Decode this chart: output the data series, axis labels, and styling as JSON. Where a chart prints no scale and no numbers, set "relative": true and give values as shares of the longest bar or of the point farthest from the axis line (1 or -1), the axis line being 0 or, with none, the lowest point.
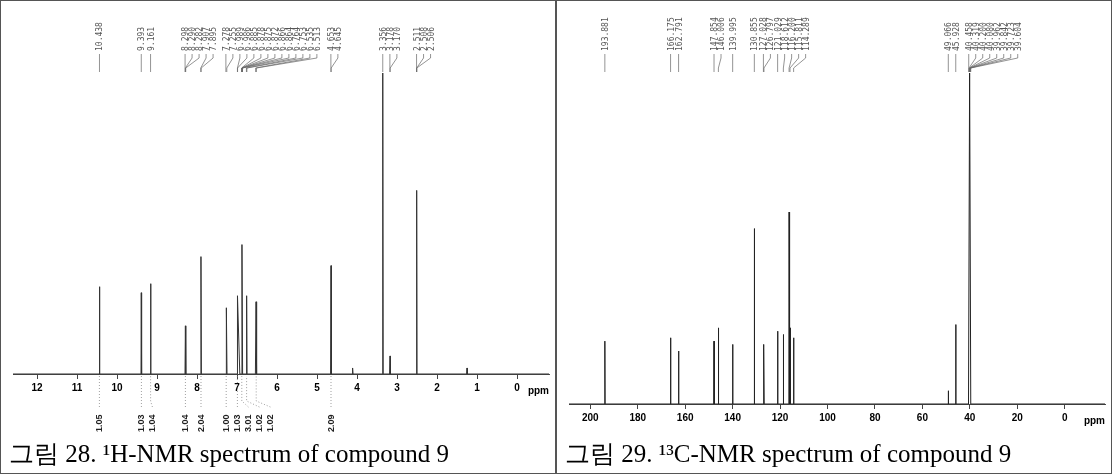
{
  "chart_data": [
    {
      "type": "line",
      "title": "그림 28. ¹H-NMR spectrum of compound 9",
      "xlabel": "ppm",
      "relative": true,
      "xlim": [
        12.6,
        -0.8
      ],
      "xticks": [
        12,
        11,
        10,
        9,
        8,
        7,
        6,
        5,
        4,
        3,
        2,
        1,
        0
      ],
      "x": [
        12.6,
        10.45,
        10.438,
        10.43,
        9.4,
        9.393,
        9.385,
        9.17,
        9.161,
        9.15,
        8.3,
        8.29,
        8.28,
        7.91,
        7.901,
        7.89,
        7.27,
        7.266,
        7.25,
        6.995,
        6.988,
        6.93,
        6.89,
        6.876,
        6.86,
        6.77,
        6.759,
        6.75,
        6.54,
        6.524,
        6.51,
        4.66,
        4.649,
        4.64,
        4.12,
        4.11,
        4.1,
        3.365,
        3.356,
        3.345,
        3.185,
        3.174,
        3.165,
        2.515,
        2.508,
        2.5,
        1.26,
        1.25,
        1.24,
        -0.8
      ],
      "series": [
        {
          "color": "#333333",
          "values": [
            0,
            0,
            0.29,
            0,
            0,
            0.27,
            0,
            0,
            0.3,
            0,
            0,
            0.16,
            0,
            0,
            0.39,
            0,
            0,
            0.22,
            0,
            0,
            0.26,
            0,
            0,
            0.43,
            0,
            0,
            0.26,
            0,
            0,
            0.24,
            0,
            0,
            0.36,
            0,
            0,
            0.02,
            0,
            0,
            1,
            0,
            0,
            0.06,
            0,
            0,
            0.61,
            0,
            0,
            0.02,
            0,
            0
          ]
        }
      ],
      "annotations": [
        {
          "text": "10.438",
          "x": 10.438
        },
        {
          "text": "9.393",
          "x": 9.393
        },
        {
          "text": "9.161",
          "x": 9.161
        },
        {
          "text": "8.298",
          "x": 8.298
        },
        {
          "text": "8.290",
          "x": 8.29
        },
        {
          "text": "8.282",
          "x": 8.282
        },
        {
          "text": "7.907",
          "x": 7.907
        },
        {
          "text": "7.895",
          "x": 7.895
        },
        {
          "text": "7.278",
          "x": 7.278
        },
        {
          "text": "7.255",
          "x": 7.255
        },
        {
          "text": "6.989",
          "x": 6.989
        },
        {
          "text": "6.986",
          "x": 6.986
        },
        {
          "text": "6.885",
          "x": 6.885
        },
        {
          "text": "6.878",
          "x": 6.878
        },
        {
          "text": "6.875",
          "x": 6.875
        },
        {
          "text": "6.872",
          "x": 6.872
        },
        {
          "text": "6.866",
          "x": 6.866
        },
        {
          "text": "6.864",
          "x": 6.864
        },
        {
          "text": "6.764",
          "x": 6.764
        },
        {
          "text": "6.753",
          "x": 6.753
        },
        {
          "text": "6.535",
          "x": 6.535
        },
        {
          "text": "6.513",
          "x": 6.513
        },
        {
          "text": "4.653",
          "x": 4.653
        },
        {
          "text": "4.645",
          "x": 4.645
        },
        {
          "text": "3.356",
          "x": 3.356
        },
        {
          "text": "3.178",
          "x": 3.178
        },
        {
          "text": "3.170",
          "x": 3.17
        },
        {
          "text": "2.511",
          "x": 2.511
        },
        {
          "text": "2.508",
          "x": 2.508
        },
        {
          "text": "2.506",
          "x": 2.506
        },
        {
          "text": "1.05",
          "x": 10.44,
          "y": 0
        },
        {
          "text": "1.03",
          "x": 9.39,
          "y": 0
        },
        {
          "text": "1.04",
          "x": 9.16,
          "y": 0
        },
        {
          "text": "1.04",
          "x": 8.29,
          "y": 0
        },
        {
          "text": "2.04",
          "x": 7.9,
          "y": 0
        },
        {
          "text": "1.00",
          "x": 7.27,
          "y": 0
        },
        {
          "text": "1.03",
          "x": 6.99,
          "y": 0
        },
        {
          "text": "3.01",
          "x": 6.88,
          "y": 0
        },
        {
          "text": "1.02",
          "x": 6.76,
          "y": 0
        },
        {
          "text": "1.02",
          "x": 6.52,
          "y": 0
        },
        {
          "text": "2.09",
          "x": 4.65,
          "y": 0
        }
      ]
    },
    {
      "type": "line",
      "title": "그림 29. ¹³C-NMR spectrum of compound 9",
      "xlabel": "ppm",
      "relative": true,
      "xlim": [
        209,
        -17
      ],
      "xticks": [
        200,
        180,
        160,
        140,
        120,
        100,
        80,
        60,
        40,
        20,
        0
      ],
      "x": [
        209,
        193.98,
        193.881,
        193.78,
        166.28,
        166.175,
        166.07,
        162.89,
        162.791,
        162.69,
        147.95,
        147.854,
        147.75,
        146.11,
        146.006,
        145.9,
        140.1,
        139.995,
        139.9,
        130.95,
        130.855,
        130.75,
        127.1,
        127.028,
        126.91,
        126.797,
        126.7,
        121.13,
        121.029,
        120.93,
        118.71,
        118.612,
        118.51,
        116.3,
        116.2,
        116.0,
        115.811,
        115.7,
        114.39,
        114.289,
        114.19,
        49.17,
        49.066,
        48.97,
        46.03,
        45.928,
        45.83,
        40.55,
        40.08,
        39.6,
        -17
      ],
      "series": [
        {
          "color": "#222222",
          "values": [
            0,
            0,
            0.19,
            0,
            0,
            0.2,
            0,
            0,
            0.16,
            0,
            0,
            0.19,
            0,
            0,
            0.23,
            0,
            0,
            0.18,
            0,
            0,
            0.53,
            0,
            0,
            0.18,
            0,
            0.17,
            0,
            0,
            0.22,
            0,
            0,
            0.21,
            0,
            0,
            0.58,
            0,
            0.23,
            0,
            0,
            0.2,
            0,
            0,
            0.04,
            0,
            0,
            0.24,
            0,
            0,
            1,
            0,
            0
          ]
        }
      ],
      "annotations": [
        {
          "text": "193.881",
          "x": 193.881
        },
        {
          "text": "166.175",
          "x": 166.175
        },
        {
          "text": "162.791",
          "x": 162.791
        },
        {
          "text": "147.854",
          "x": 147.854
        },
        {
          "text": "146.006",
          "x": 146.006
        },
        {
          "text": "139.995",
          "x": 139.995
        },
        {
          "text": "130.855",
          "x": 130.855
        },
        {
          "text": "127.028",
          "x": 127.028
        },
        {
          "text": "126.797",
          "x": 126.797
        },
        {
          "text": "121.029",
          "x": 121.029
        },
        {
          "text": "118.612",
          "x": 118.612
        },
        {
          "text": "116.200",
          "x": 116.2
        },
        {
          "text": "115.811",
          "x": 115.811
        },
        {
          "text": "114.289",
          "x": 114.289
        },
        {
          "text": "49.066",
          "x": 49.066
        },
        {
          "text": "45.928",
          "x": 45.928
        },
        {
          "text": "40.458",
          "x": 40.458
        },
        {
          "text": "40.319",
          "x": 40.319
        },
        {
          "text": "40.200",
          "x": 40.2
        },
        {
          "text": "40.080",
          "x": 40.08
        },
        {
          "text": "39.962",
          "x": 39.962
        },
        {
          "text": "39.842",
          "x": 39.842
        },
        {
          "text": "39.723",
          "x": 39.723
        },
        {
          "text": "39.604",
          "x": 39.604
        }
      ]
    }
  ]
}
